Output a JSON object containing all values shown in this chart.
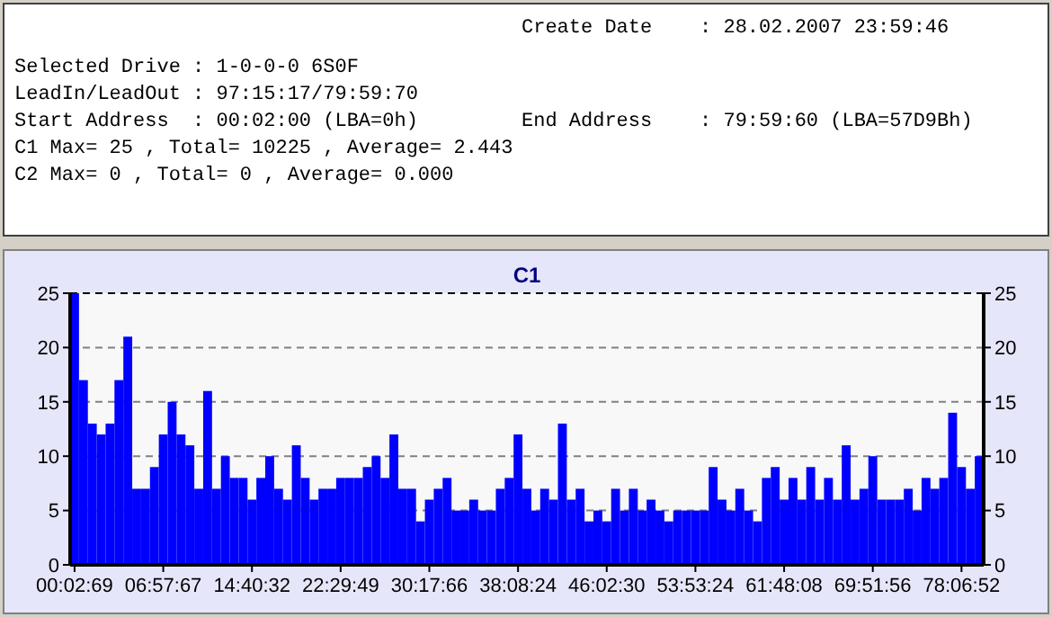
{
  "chart_data": {
    "type": "bar",
    "title": "C1",
    "categories": [
      "00:02:69",
      null,
      null,
      null,
      null,
      null,
      null,
      null,
      null,
      null,
      "06:57:67",
      null,
      null,
      null,
      null,
      null,
      null,
      null,
      null,
      null,
      "14:40:32",
      null,
      null,
      null,
      null,
      null,
      null,
      null,
      null,
      null,
      "22:29:49",
      null,
      null,
      null,
      null,
      null,
      null,
      null,
      null,
      null,
      "30:17:66",
      null,
      null,
      null,
      null,
      null,
      null,
      null,
      null,
      null,
      "38:08:24",
      null,
      null,
      null,
      null,
      null,
      null,
      null,
      null,
      null,
      "46:02:30",
      null,
      null,
      null,
      null,
      null,
      null,
      null,
      null,
      null,
      "53:53:24",
      null,
      null,
      null,
      null,
      null,
      null,
      null,
      null,
      null,
      "61:48:08",
      null,
      null,
      null,
      null,
      null,
      null,
      null,
      null,
      null,
      "69:51:56",
      null,
      null,
      null,
      null,
      null,
      null,
      null,
      null,
      null,
      "78:06:52",
      null,
      null
    ],
    "values": [
      25,
      17,
      13,
      12,
      13,
      17,
      21,
      7,
      7,
      9,
      12,
      15,
      12,
      11,
      7,
      16,
      7,
      10,
      8,
      8,
      6,
      8,
      10,
      7,
      6,
      11,
      8,
      6,
      7,
      7,
      8,
      8,
      8,
      9,
      10,
      8,
      12,
      7,
      7,
      4,
      6,
      7,
      8,
      5,
      5,
      6,
      5,
      5,
      7,
      8,
      12,
      7,
      5,
      7,
      6,
      13,
      6,
      7,
      4,
      5,
      4,
      7,
      5,
      7,
      5,
      6,
      5,
      4,
      5,
      5,
      5,
      5,
      9,
      6,
      5,
      7,
      5,
      4,
      8,
      9,
      6,
      8,
      6,
      9,
      6,
      8,
      6,
      11,
      6,
      7,
      10,
      6,
      6,
      6,
      7,
      5,
      8,
      7,
      8,
      14,
      9,
      7,
      10
    ],
    "color": "#0000ff",
    "ylim": [
      0,
      25
    ],
    "yticks": [
      0,
      5,
      10,
      15,
      20,
      25
    ],
    "y2lim": [
      0,
      25
    ],
    "y2ticks": [
      0,
      5,
      10,
      15,
      20,
      25
    ],
    "grid": "y",
    "annotations": [
      "Create Date    : 28.02.2007 23:59:46",
      "Selected Drive : 1-0-0-0 6S0F",
      "LeadIn/LeadOut : 97:15:17/79:59:70",
      "Start Address  : 00:02:00 (LBA=0h)",
      "End Address    : 79:59:60 (LBA=57D9Bh)",
      "C1 Max= 25 , Total= 10225 , Average= 2.443",
      "C2 Max= 0 , Total= 0 , Average= 0.000"
    ]
  }
}
